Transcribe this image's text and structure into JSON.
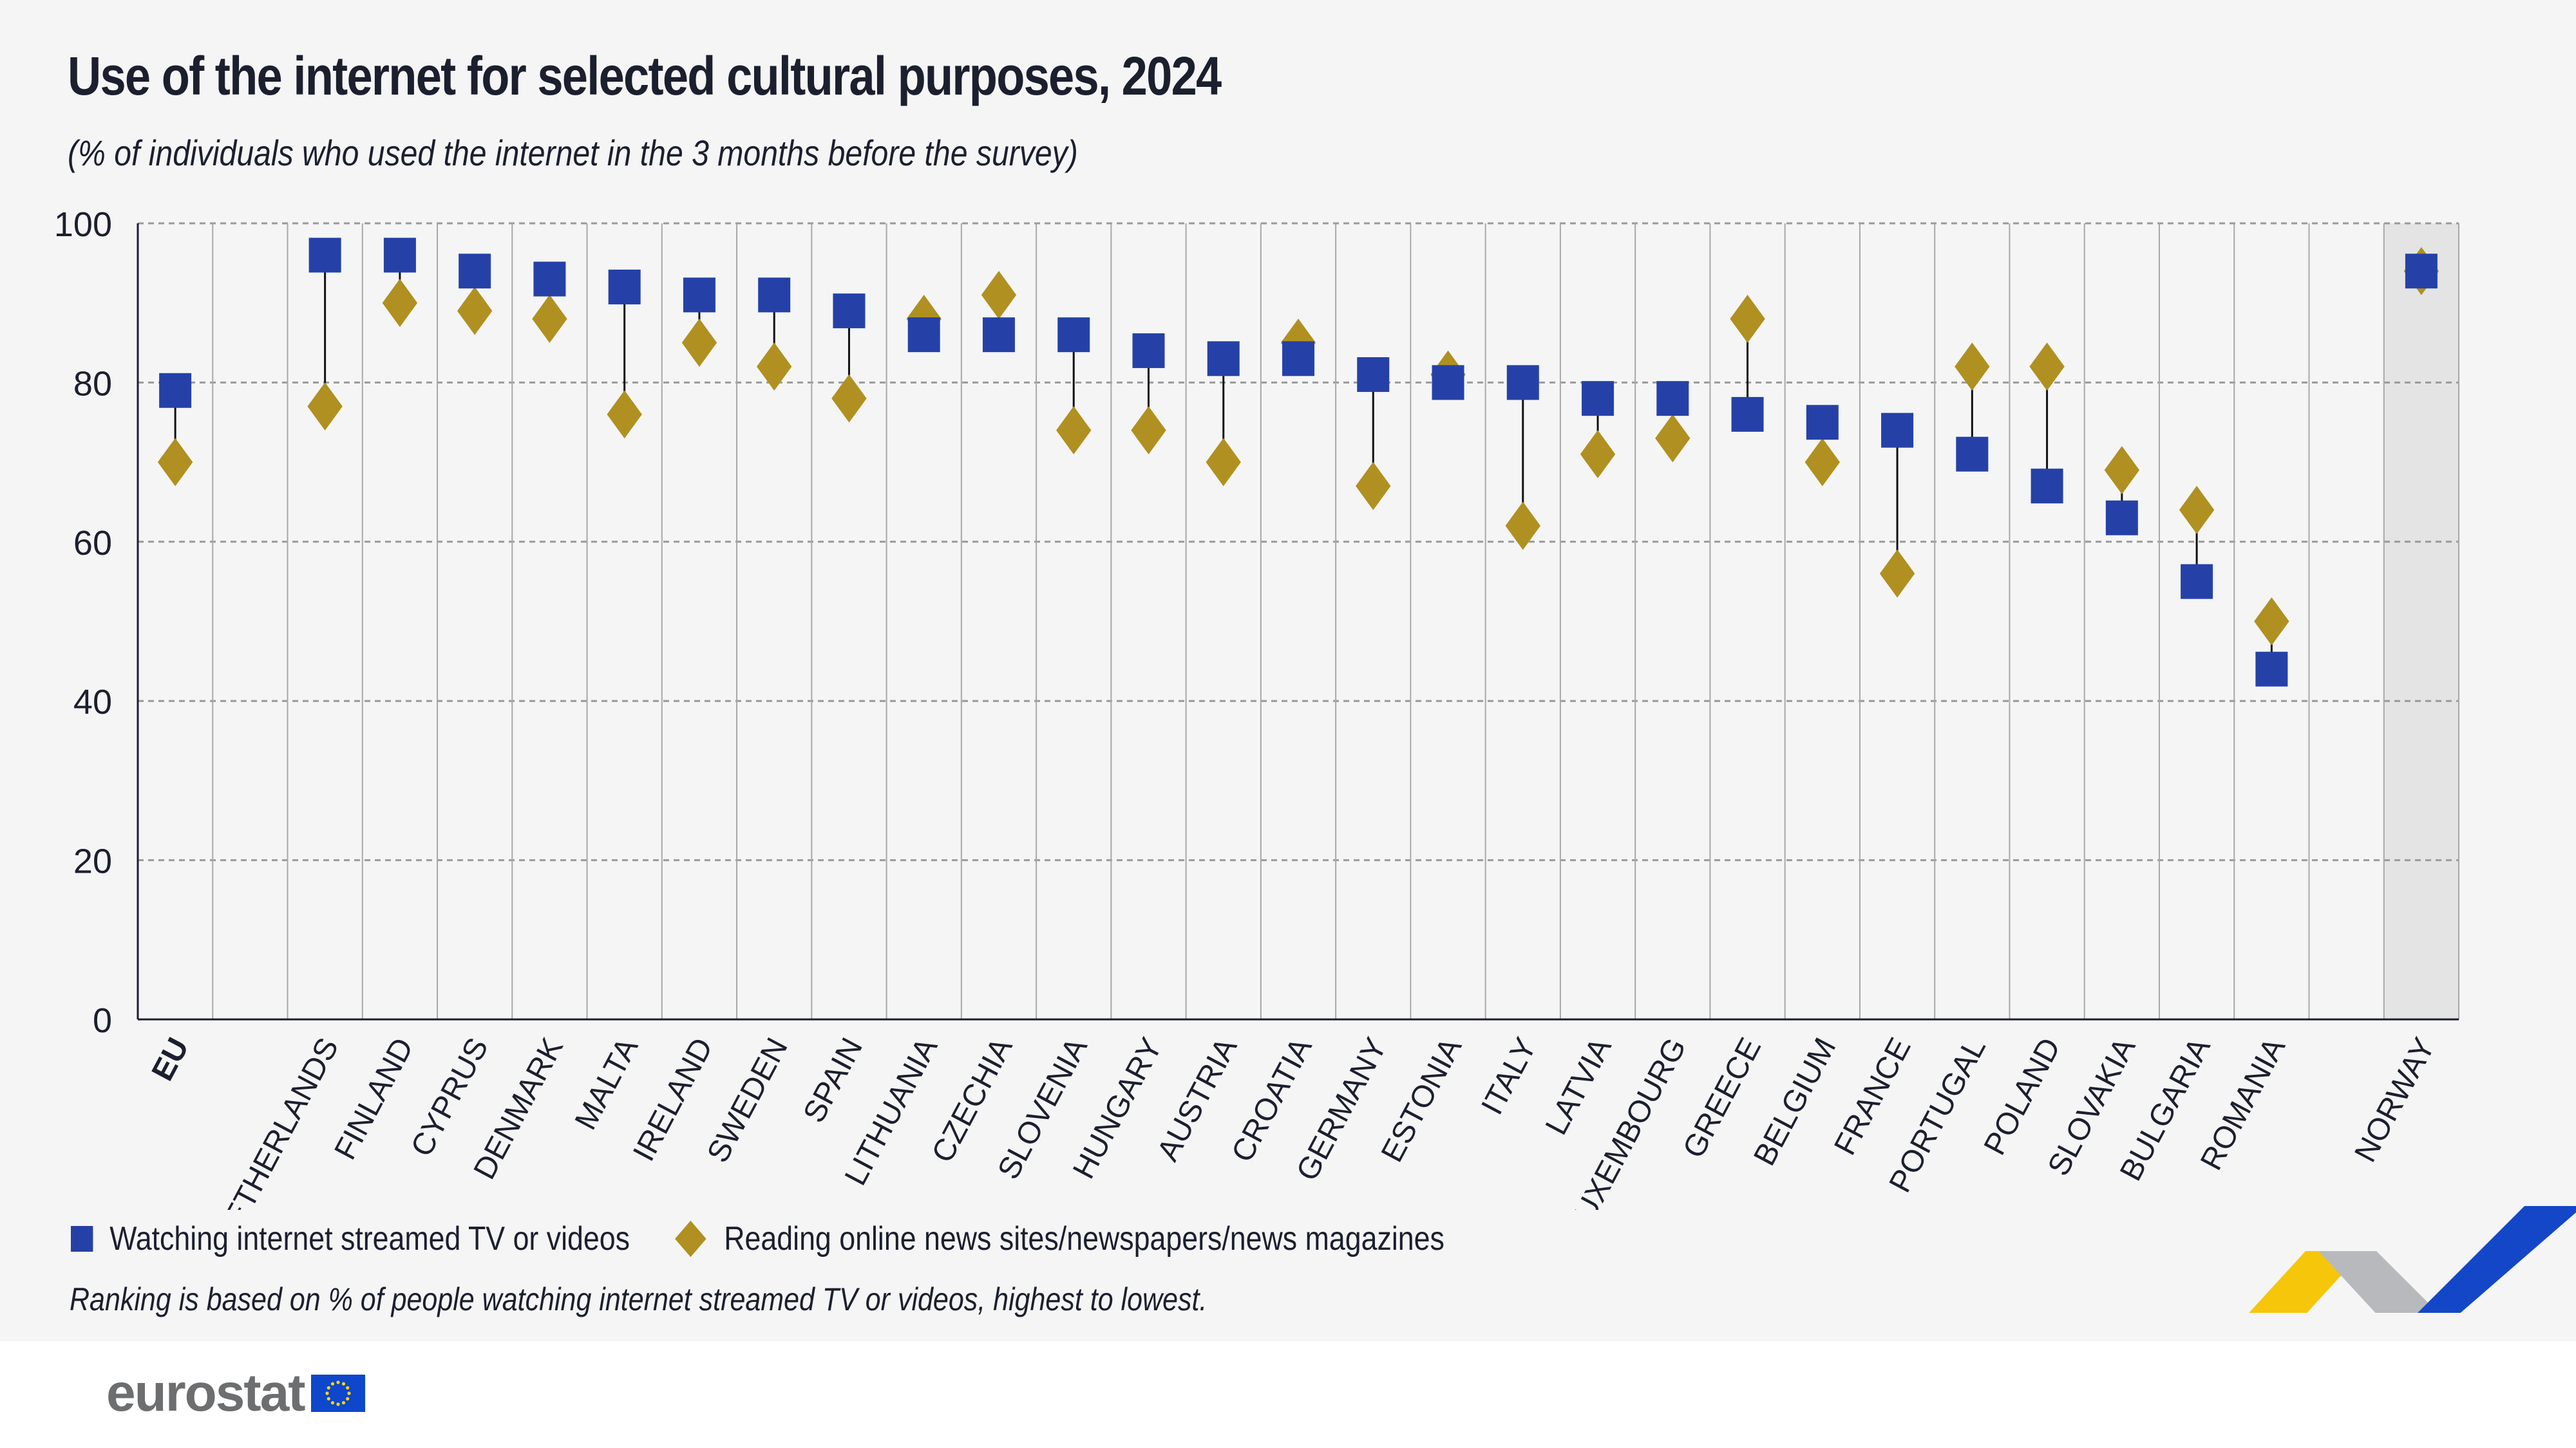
{
  "header": {
    "title": "Use of the internet for selected cultural purposes, 2024",
    "subtitle": "(% of individuals who used the internet in the 3 months before the survey)"
  },
  "chart_data": {
    "type": "dumbbell",
    "title": "Use of the internet for selected cultural purposes, 2024",
    "subtitle": "(% of individuals who used the internet in the 3 months before the survey)",
    "ylim": [
      0,
      100
    ],
    "yticks": [
      0,
      20,
      40,
      60,
      80,
      100
    ],
    "grid": true,
    "legend_position": "bottom-left",
    "categories": [
      "EU",
      "",
      "NETHERLANDS",
      "FINLAND",
      "CYPRUS",
      "DENMARK",
      "MALTA",
      "IRELAND",
      "SWEDEN",
      "SPAIN",
      "LITHUANIA",
      "CZECHIA",
      "SLOVENIA",
      "HUNGARY",
      "AUSTRIA",
      "CROATIA",
      "GERMANY",
      "ESTONIA",
      "ITALY",
      "LATVIA",
      "LUXEMBOURG",
      "GREECE",
      "BELGIUM",
      "FRANCE",
      "PORTUGAL",
      "POLAND",
      "SLOVAKIA",
      "BULGARIA",
      "ROMANIA",
      "",
      "NORWAY"
    ],
    "highlighted_category": "NORWAY",
    "series": [
      {
        "name": "Watching internet streamed TV or videos",
        "marker": "square",
        "color": "#2541a8",
        "values": [
          79,
          null,
          96,
          96,
          94,
          93,
          92,
          91,
          91,
          89,
          86,
          86,
          86,
          84,
          83,
          83,
          81,
          80,
          80,
          78,
          78,
          76,
          75,
          74,
          71,
          67,
          63,
          55,
          44,
          null,
          94
        ]
      },
      {
        "name": "Reading online news sites/newspapers/news magazines",
        "marker": "diamond",
        "color": "#b09020",
        "values": [
          70,
          null,
          77,
          90,
          89,
          88,
          76,
          85,
          82,
          78,
          88,
          91,
          74,
          74,
          70,
          85,
          67,
          81,
          62,
          71,
          73,
          88,
          70,
          56,
          82,
          82,
          69,
          64,
          50,
          null,
          94
        ]
      }
    ]
  },
  "legend": {
    "items": [
      "Watching internet streamed TV or videos",
      "Reading online news sites/newspapers/news magazines"
    ]
  },
  "note": "Ranking is based on % of people watching internet streamed TV or videos, highest to lowest.",
  "footer": {
    "logo": "eurostat"
  }
}
